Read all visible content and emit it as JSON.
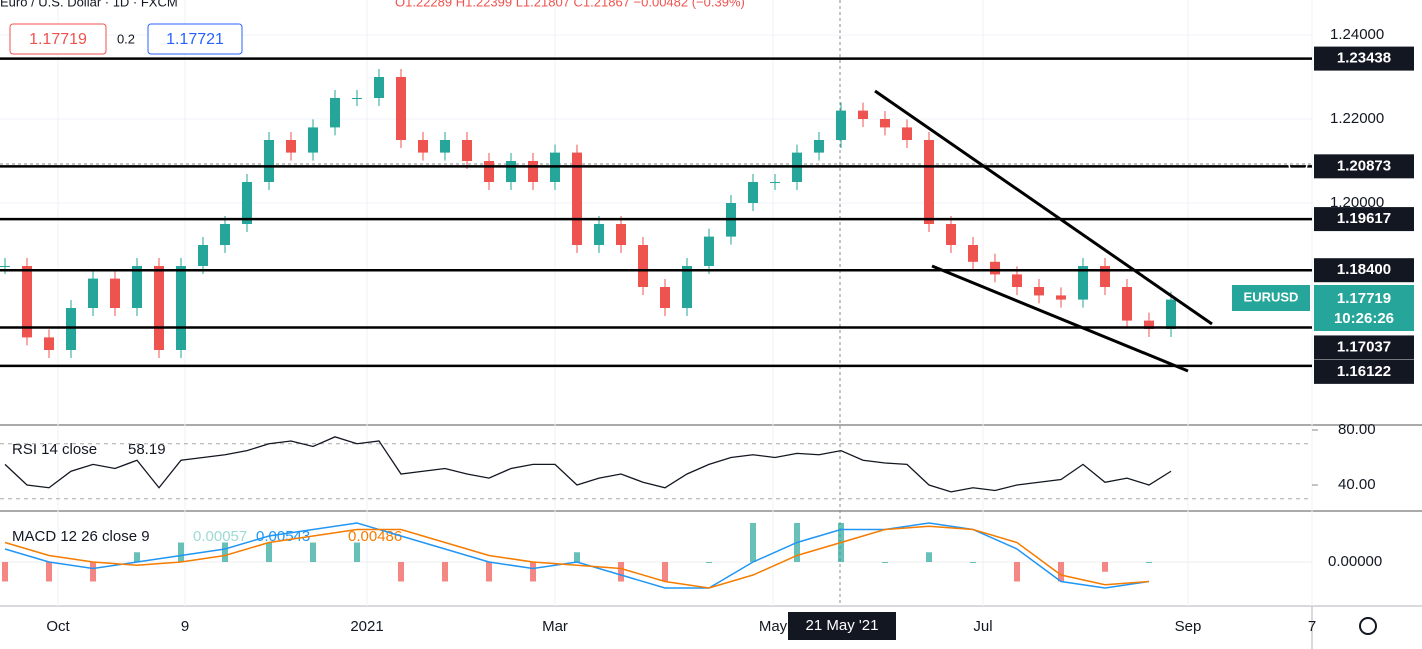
{
  "header": {
    "symbol": "Euro / U.S. Dollar · 1D · FXCM",
    "ohlc": "O1.22289 H1.22399 L1.21807 C1.21867 −0.00482 (−0.39%)",
    "bid": "1.17719",
    "spread": "0.2",
    "ask": "1.17721"
  },
  "price_axis": {
    "ticks": [
      {
        "value": 1.24,
        "label": "1.24000"
      },
      {
        "value": 1.22,
        "label": "1.22000"
      },
      {
        "value": 1.2,
        "label": "1.20000"
      }
    ],
    "levels": [
      {
        "value": 1.23438,
        "label": "1.23438"
      },
      {
        "value": 1.20873,
        "label": "1.20873"
      },
      {
        "value": 1.19617,
        "label": "1.19617"
      },
      {
        "value": 1.184,
        "label": "1.18400"
      },
      {
        "value": 1.17037,
        "label": "1.17037"
      },
      {
        "value": 1.16122,
        "label": "1.16122"
      }
    ],
    "symbol_tag": "EURUSD",
    "last_price": "1.17719",
    "countdown": "10:26:26"
  },
  "price_chart": {
    "closes": [
      1.185,
      1.168,
      1.165,
      1.175,
      1.182,
      1.175,
      1.185,
      1.165,
      1.185,
      1.19,
      1.195,
      1.205,
      1.215,
      1.212,
      1.218,
      1.225,
      1.225,
      1.23,
      1.215,
      1.212,
      1.215,
      1.21,
      1.205,
      1.21,
      1.205,
      1.212,
      1.19,
      1.195,
      1.19,
      1.18,
      1.175,
      1.185,
      1.192,
      1.2,
      1.205,
      1.205,
      1.212,
      1.215,
      1.222,
      1.22,
      1.218,
      1.215,
      1.195,
      1.19,
      1.186,
      1.183,
      1.18,
      1.178,
      1.177,
      1.185,
      1.18,
      1.172,
      1.17,
      1.177
    ]
  },
  "time_axis": [
    "Oct",
    "9",
    "2021",
    "Mar",
    "May",
    "Jul",
    "Sep",
    "7"
  ],
  "crosshair_date": "21 May '21",
  "rsi": {
    "label": "RSI 14 close",
    "value": "58.19",
    "ticks": [
      {
        "value": 80,
        "label": "80.00"
      },
      {
        "value": 40,
        "label": "40.00"
      }
    ],
    "values": [
      55,
      40,
      38,
      50,
      55,
      52,
      58,
      38,
      58,
      60,
      62,
      65,
      70,
      72,
      68,
      75,
      70,
      72,
      48,
      50,
      52,
      48,
      45,
      52,
      55,
      55,
      40,
      45,
      48,
      42,
      38,
      48,
      55,
      60,
      62,
      60,
      63,
      62,
      65,
      58,
      56,
      55,
      40,
      35,
      38,
      36,
      40,
      42,
      44,
      55,
      42,
      45,
      40,
      50
    ]
  },
  "macd": {
    "label": "MACD 12 26 close 9",
    "hist": "0.00057",
    "macd_value": "0.00543",
    "signal_value": "0.00486",
    "ticks": [
      {
        "value": 0,
        "label": "0.00000"
      }
    ],
    "macd_line": [
      0.002,
      0.0,
      -0.001,
      0.0,
      0.001,
      0.002,
      0.004,
      0.005,
      0.006,
      0.004,
      0.002,
      0.0,
      -0.001,
      0.0,
      -0.002,
      -0.004,
      -0.004,
      0.0,
      0.003,
      0.005,
      0.005,
      0.006,
      0.005,
      0.002,
      -0.003,
      -0.004,
      -0.003
    ],
    "signal_line": [
      0.003,
      0.001,
      0.0,
      -0.0005,
      0.0,
      0.001,
      0.003,
      0.004,
      0.005,
      0.005,
      0.003,
      0.001,
      0.0,
      -0.0005,
      -0.001,
      -0.003,
      -0.004,
      -0.002,
      0.001,
      0.003,
      0.005,
      0.0055,
      0.005,
      0.003,
      -0.002,
      -0.0035,
      -0.003
    ]
  }
}
